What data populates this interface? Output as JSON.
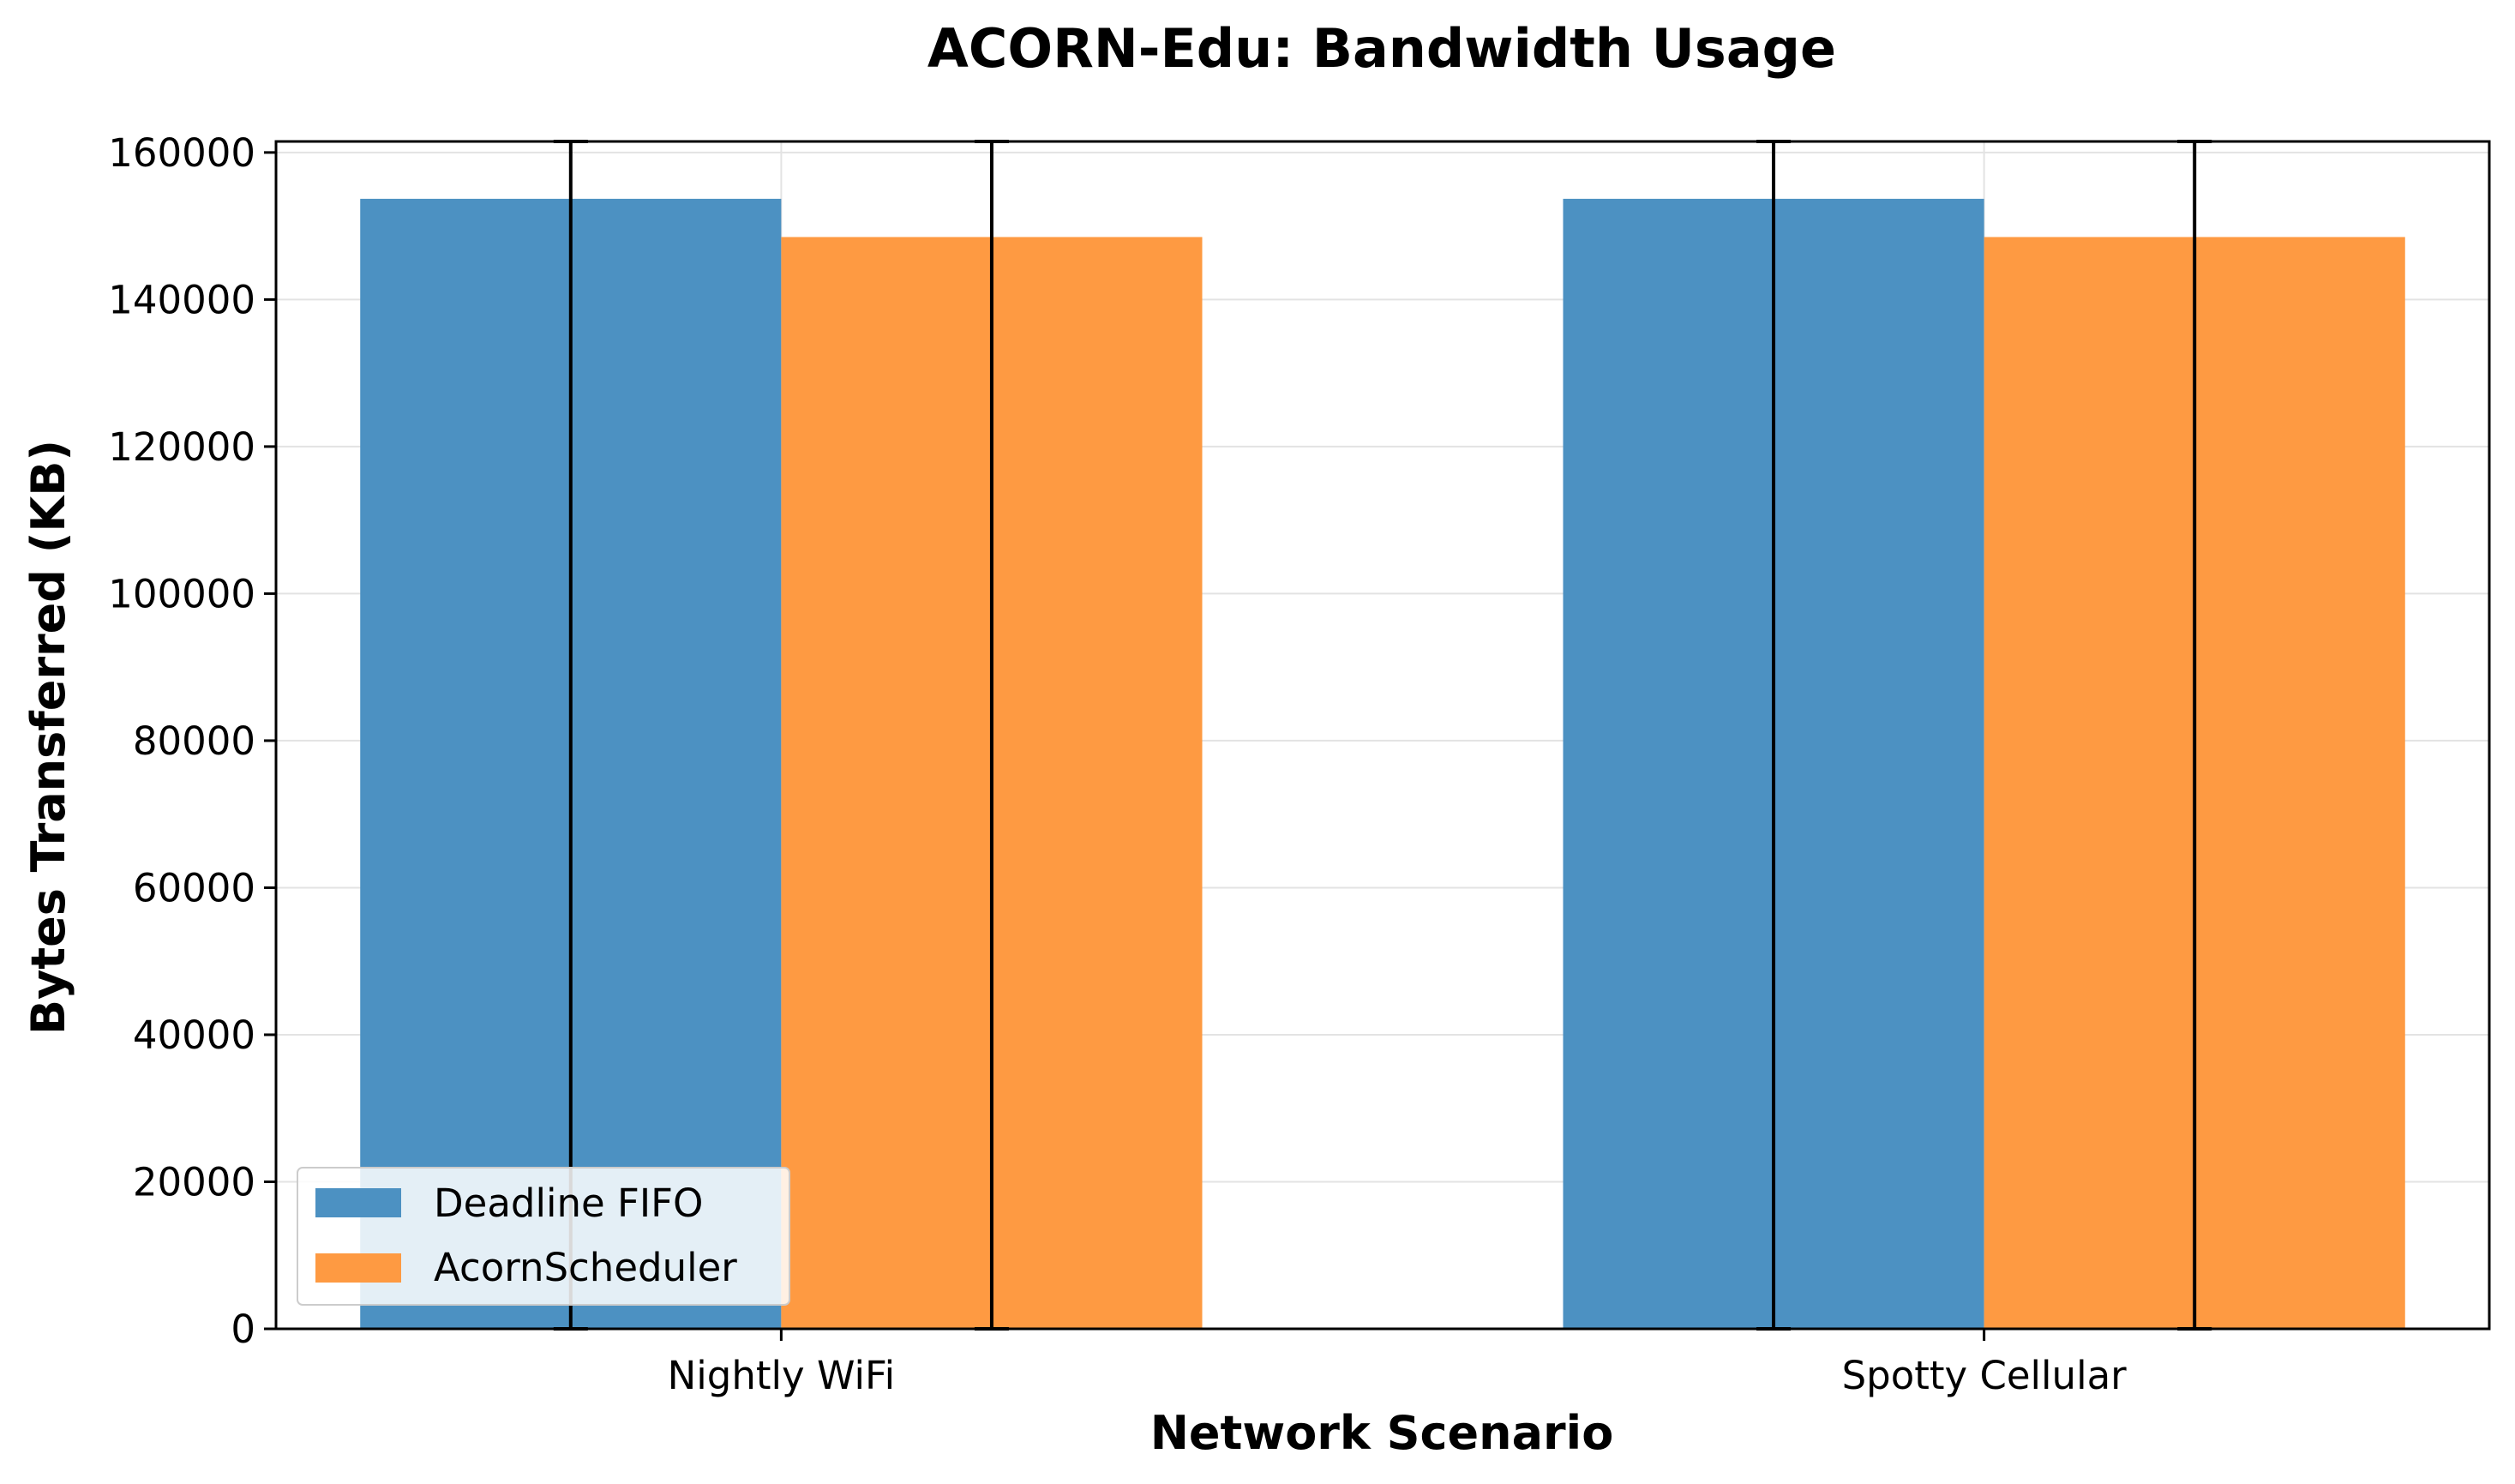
{
  "chart_data": {
    "type": "bar",
    "title": "ACORN-Edu: Bandwidth Usage",
    "xlabel": "Network Scenario",
    "ylabel": "Bytes Transferred (KB)",
    "categories": [
      "Nightly WiFi",
      "Spotty Cellular"
    ],
    "series": [
      {
        "name": "Deadline FIFO",
        "color": "#4c91c2",
        "values": [
          153700,
          153700
        ],
        "error": [
          153700,
          153700
        ]
      },
      {
        "name": "AcornScheduler",
        "color": "#fe9a42",
        "values": [
          148500,
          148500
        ],
        "error": [
          148500,
          148500
        ]
      }
    ],
    "ylim": [
      0,
      161500
    ],
    "yticks": [
      0,
      20000,
      40000,
      60000,
      80000,
      100000,
      120000,
      140000,
      160000
    ],
    "ytick_labels": [
      "0",
      "20000",
      "40000",
      "60000",
      "80000",
      "100000",
      "120000",
      "140000",
      "160000"
    ],
    "grid": true,
    "legend_position": "lower-left"
  }
}
